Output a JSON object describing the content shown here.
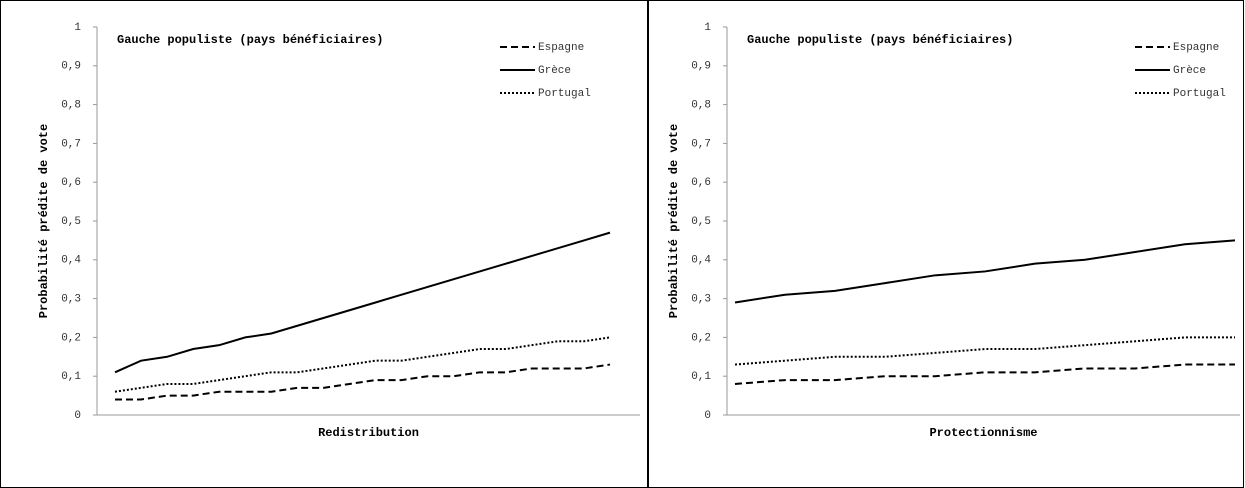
{
  "chart_data": [
    {
      "type": "line",
      "title": "Gauche populiste (pays bénéficiaires)",
      "xlabel": "Redistribution",
      "ylabel": "Probabilité prédite de vote",
      "categories": [
        null,
        null,
        null,
        null,
        null,
        null,
        null,
        null,
        null,
        null,
        null,
        null,
        null,
        null,
        null,
        null,
        null,
        null,
        null,
        null
      ],
      "series": [
        {
          "name": "Espagne",
          "color": "#000000",
          "dash": "dashed",
          "values": [
            0.04,
            0.04,
            0.05,
            0.05,
            0.06,
            0.06,
            0.06,
            0.07,
            0.07,
            0.08,
            0.09,
            0.09,
            0.1,
            0.1,
            0.11,
            0.11,
            0.12,
            0.12,
            0.12,
            0.13
          ]
        },
        {
          "name": "Grèce",
          "color": "#000000",
          "dash": "solid",
          "values": [
            0.11,
            0.14,
            0.15,
            0.17,
            0.18,
            0.2,
            0.21,
            0.23,
            0.25,
            0.27,
            0.29,
            0.31,
            0.33,
            0.35,
            0.37,
            0.39,
            0.41,
            0.43,
            0.45,
            0.47
          ]
        },
        {
          "name": "Portugal",
          "color": "#000000",
          "dash": "dotted",
          "values": [
            0.06,
            0.07,
            0.08,
            0.08,
            0.09,
            0.1,
            0.11,
            0.11,
            0.12,
            0.13,
            0.14,
            0.14,
            0.15,
            0.16,
            0.17,
            0.17,
            0.18,
            0.19,
            0.19,
            0.2
          ]
        }
      ],
      "ylim": [
        0,
        1
      ],
      "yticks": [
        0,
        {
          "value": 0.1,
          "label": "0,1"
        },
        {
          "value": 0.2,
          "label": "0,2"
        },
        {
          "value": 0.3,
          "label": "0,3"
        },
        {
          "value": 0.4,
          "label": "0,4"
        },
        {
          "value": 0.5,
          "label": "0,5"
        },
        {
          "value": 0.6,
          "label": "0,6"
        },
        {
          "value": 0.7,
          "label": "0,7"
        },
        {
          "value": 0.8,
          "label": "0,8"
        },
        {
          "value": 0.9,
          "label": "0,9"
        },
        1
      ],
      "legend": "upper right"
    },
    {
      "type": "line",
      "title": "Gauche populiste (pays bénéficiaires)",
      "xlabel": "Protectionnisme",
      "ylabel": "Probabilité prédite de vote",
      "categories": [
        null,
        null,
        null,
        null,
        null,
        null,
        null,
        null,
        null,
        null,
        null
      ],
      "series": [
        {
          "name": "Espagne",
          "color": "#000000",
          "dash": "dashed",
          "values": [
            0.08,
            0.09,
            0.09,
            0.1,
            0.1,
            0.11,
            0.11,
            0.12,
            0.12,
            0.13,
            0.13
          ]
        },
        {
          "name": "Grèce",
          "color": "#000000",
          "dash": "solid",
          "values": [
            0.29,
            0.31,
            0.32,
            0.34,
            0.36,
            0.37,
            0.39,
            0.4,
            0.42,
            0.44,
            0.45
          ]
        },
        {
          "name": "Portugal",
          "color": "#000000",
          "dash": "dotted",
          "values": [
            0.13,
            0.14,
            0.15,
            0.15,
            0.16,
            0.17,
            0.17,
            0.18,
            0.19,
            0.2,
            0.2
          ]
        }
      ],
      "ylim": [
        0,
        1
      ],
      "yticks": [
        0,
        {
          "value": 0.1,
          "label": "0,1"
        },
        {
          "value": 0.2,
          "label": "0,2"
        },
        {
          "value": 0.3,
          "label": "0,3"
        },
        {
          "value": 0.4,
          "label": "0,4"
        },
        {
          "value": 0.5,
          "label": "0,5"
        },
        {
          "value": 0.6,
          "label": "0,6"
        },
        {
          "value": 0.7,
          "label": "0,7"
        },
        {
          "value": 0.8,
          "label": "0,8"
        },
        {
          "value": 0.9,
          "label": "0,9"
        },
        1
      ],
      "legend": "upper right"
    }
  ]
}
